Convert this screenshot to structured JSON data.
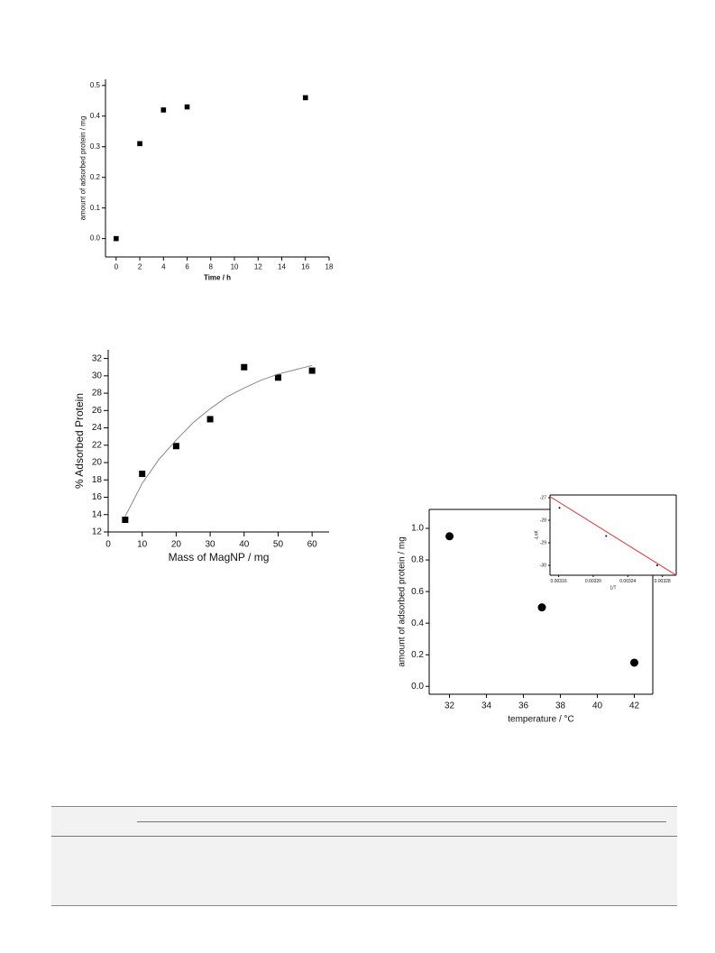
{
  "chart_data": [
    {
      "type": "scatter",
      "x_label": "Time / h",
      "y_label": "amount of adsorbed protein / mg",
      "xlim": [
        -0.9,
        18
      ],
      "ylim": [
        -0.06,
        0.52
      ],
      "xticks": [
        0,
        2,
        4,
        6,
        8,
        10,
        12,
        14,
        16,
        18
      ],
      "yticks": [
        {
          "value": 0,
          "label": "0.0"
        },
        0.1,
        0.2,
        0.3,
        0.4,
        0.5
      ],
      "series": [
        {
          "x": [
            0,
            2,
            4,
            6,
            16
          ],
          "values": [
            0,
            0.31,
            0.42,
            0.43,
            0.46
          ],
          "marker": "square",
          "color": "#000000"
        }
      ]
    },
    {
      "type": "scatter",
      "x_label": "Mass of MagNP / mg",
      "y_label": "% Adsorbed Protein",
      "xlim": [
        0,
        65
      ],
      "ylim": [
        12,
        33
      ],
      "xticks": [
        0,
        10,
        20,
        30,
        40,
        50,
        60
      ],
      "yticks": [
        12,
        14,
        16,
        18,
        20,
        22,
        24,
        26,
        28,
        30,
        32
      ],
      "series": [
        {
          "x": [
            5,
            10,
            20,
            30,
            40,
            50,
            60
          ],
          "values": [
            13.4,
            18.7,
            21.9,
            25,
            31,
            29.8,
            30.6
          ],
          "marker": "square",
          "color": "#000000"
        },
        {
          "x": [
            5,
            10,
            15,
            20,
            25,
            30,
            35,
            40,
            45,
            50,
            55,
            60
          ],
          "values": [
            13.8,
            17.6,
            20.4,
            22.6,
            24.6,
            26.2,
            27.6,
            28.6,
            29.5,
            30.2,
            30.7,
            31.2
          ],
          "marker": "line",
          "color": "#888888"
        }
      ]
    },
    {
      "type": "scatter",
      "x_label": "temperature / °C",
      "y_label": "amount of adsorbed protein / mg",
      "frame": true,
      "xlim": [
        30.9,
        43
      ],
      "ylim": [
        -0.05,
        1.12
      ],
      "xticks": [
        32,
        34,
        36,
        38,
        40,
        42
      ],
      "yticks": [
        {
          "value": 0,
          "label": "0.0"
        },
        0.2,
        0.4,
        0.6,
        0.8,
        {
          "value": 1,
          "label": "1.0"
        }
      ],
      "series": [
        {
          "x": [
            32,
            37,
            42
          ],
          "values": [
            0.95,
            0.5,
            0.15
          ],
          "marker": "circle",
          "color": "#000000"
        }
      ]
    },
    {
      "type": "scatter",
      "x_label": "1/T",
      "y_label": "-LnK",
      "frame": true,
      "xlim": [
        0.00315,
        0.003296
      ],
      "ylim": [
        -30.44,
        -26.88
      ],
      "xticks": [
        0.00316,
        {
          "value": 0.0032,
          "label": "0.00320"
        },
        0.00324,
        0.00328
      ],
      "yticks": [
        -27,
        -28,
        -29,
        -30
      ],
      "series": [
        {
          "x": [
            0.003161,
            0.003215,
            0.003274
          ],
          "values": [
            -27.45,
            -28.7,
            -30.0
          ],
          "marker": "dot",
          "color": "#000000"
        },
        {
          "x": [
            0.00315,
            0.003296
          ],
          "values": [
            -26.95,
            -30.44
          ],
          "marker": "line",
          "color": "#e03030"
        }
      ]
    }
  ]
}
